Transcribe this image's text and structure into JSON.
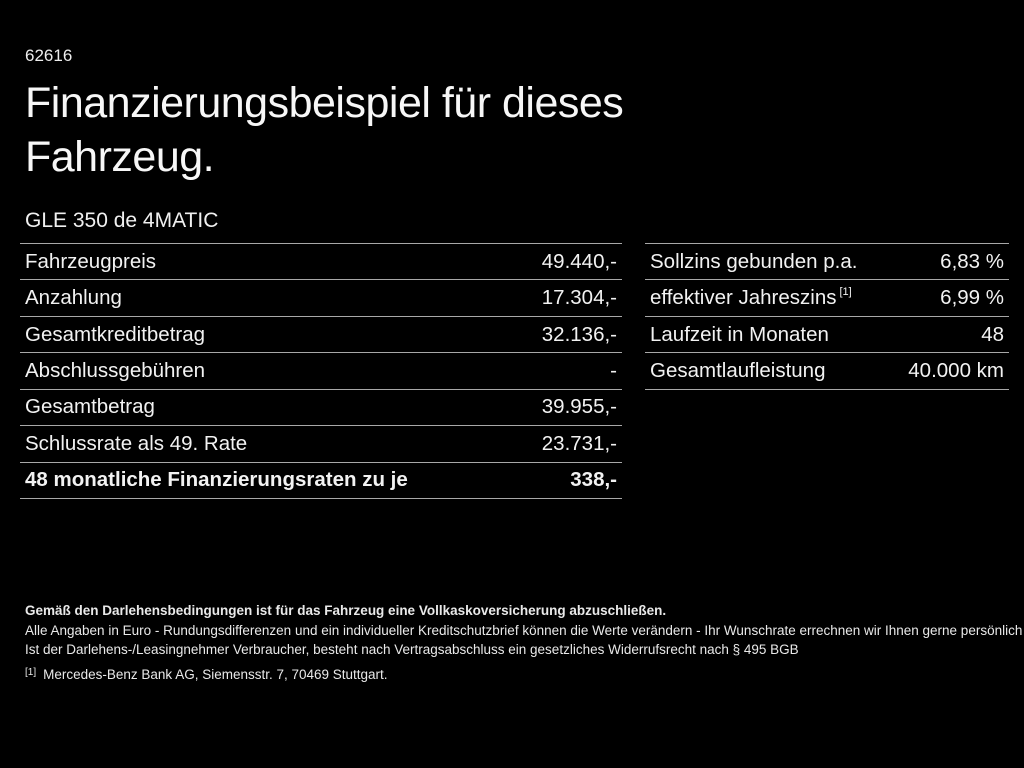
{
  "page": {
    "doc_number": "62616",
    "title": "Finanzierungsbeispiel für dieses Fahrzeug.",
    "subtitle": "GLE 350 de 4MATIC"
  },
  "left_table": {
    "rows": [
      {
        "label": "Fahrzeugpreis",
        "value": "49.440,-",
        "bold": false
      },
      {
        "label": "Anzahlung",
        "value": "17.304,-",
        "bold": false
      },
      {
        "label": "Gesamtkreditbetrag",
        "value": "32.136,-",
        "bold": false
      },
      {
        "label": "Abschlussgebühren",
        "value": "-",
        "bold": false
      },
      {
        "label": "Gesamtbetrag",
        "value": "39.955,-",
        "bold": false
      },
      {
        "label": "Schlussrate als 49. Rate",
        "value": "23.731,-",
        "bold": false
      },
      {
        "label": "48 monatliche Finanzierungsraten zu je",
        "value": "338,-",
        "bold": true
      }
    ]
  },
  "right_table": {
    "rows": [
      {
        "label": "Sollzins gebunden p.a.",
        "value": "6,83 %",
        "bold": false
      },
      {
        "label": "effektiver Jahreszins",
        "label_sup": "[1]",
        "value": "6,99 %",
        "bold": false
      },
      {
        "label": "Laufzeit in Monaten",
        "value": "48",
        "bold": false
      },
      {
        "label": "Gesamtlaufleistung",
        "value": "40.000 km",
        "bold": false
      }
    ]
  },
  "footnotes": {
    "insurance_bold": "Gemäß den Darlehensbedingungen ist für das Fahrzeug eine Vollkaskoversicherung abzuschließen.",
    "line2": "Alle Angaben in Euro - Rundungsdifferenzen und ein individueller Kreditschutzbrief können die Werte verändern - Ihr Wunschrate errechnen wir Ihnen gerne persönlich",
    "line3": "Ist der Darlehens-/Leasingnehmer Verbraucher, besteht nach Vertragsabschluss ein gesetzliches Widerrufsrecht nach § 495 BGB",
    "ref_marker": "[1]",
    "ref_text": "Mercedes-Benz Bank AG, Siemensstr. 7, 70469 Stuttgart."
  },
  "colors": {
    "background": "#000000",
    "text": "#f2f2f2",
    "divider": "#a8a8a8"
  }
}
